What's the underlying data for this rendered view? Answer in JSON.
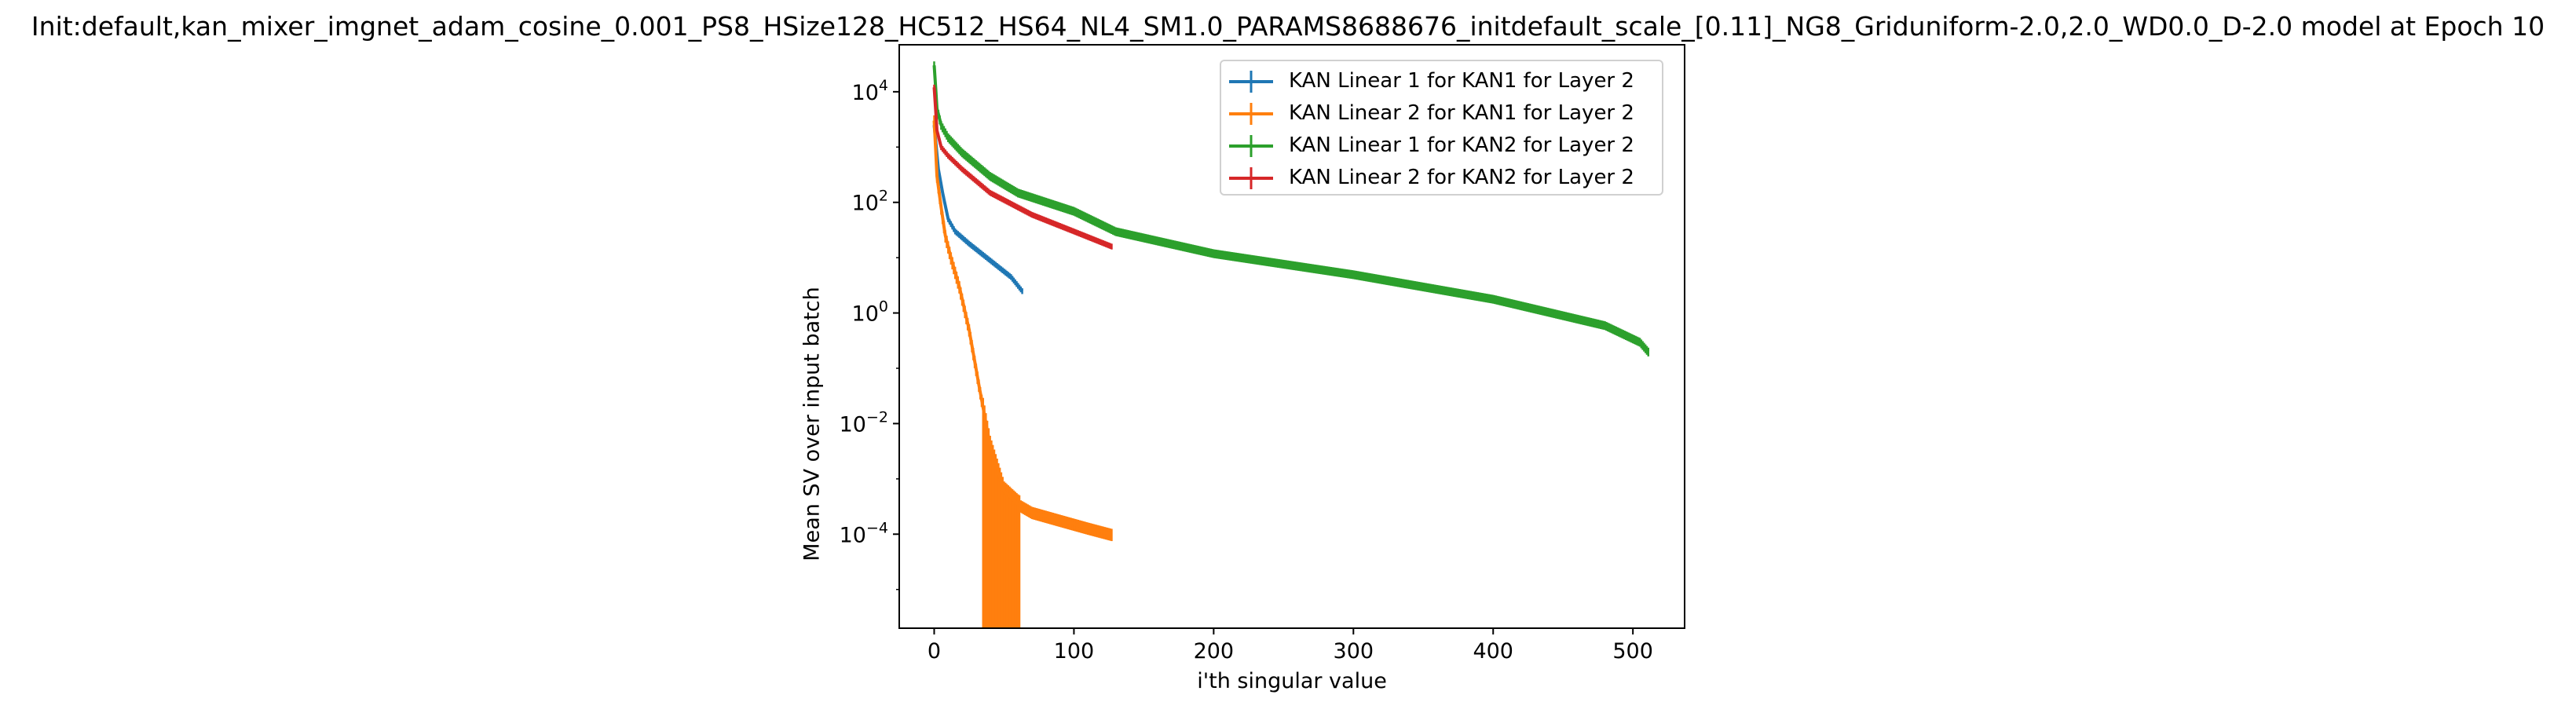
{
  "chart_data": {
    "type": "line",
    "title": "Init:default,kan_mixer_imgnet_adam_cosine_0.001_PS8_HSize128_HC512_HS64_NL4_SM1.0_PARAMS8688676_initdefault_scale_[0.11]_NG8_Griduniform-2.0,2.0_WD0.0_D-2.0 model at Epoch 10",
    "xlabel": "i'th singular value",
    "ylabel": "Mean SV over input batch",
    "yscale": "log",
    "xlim": [
      -25,
      537
    ],
    "ylim_log10": [
      -5.7,
      4.85
    ],
    "xticks": [
      0,
      100,
      200,
      300,
      400,
      500
    ],
    "xtick_labels": [
      "0",
      "100",
      "200",
      "300",
      "400",
      "500"
    ],
    "yticks_log10": [
      4,
      2,
      0,
      -2,
      -4
    ],
    "ytick_labels": [
      {
        "base": "10",
        "exp": "4"
      },
      {
        "base": "10",
        "exp": "2"
      },
      {
        "base": "10",
        "exp": "0"
      },
      {
        "base": "10",
        "exp": "−2"
      },
      {
        "base": "10",
        "exp": "−4"
      }
    ],
    "legend_position": "upper right",
    "grid": false,
    "series": [
      {
        "name": "KAN Linear 1 for KAN1 for Layer 2",
        "color": "#1f77b4",
        "n": 64,
        "points": [
          [
            0,
            2500
          ],
          [
            3,
            400
          ],
          [
            6,
            150
          ],
          [
            10,
            50
          ],
          [
            15,
            30
          ],
          [
            25,
            18
          ],
          [
            40,
            9
          ],
          [
            55,
            4.5
          ],
          [
            63,
            2.5
          ]
        ],
        "err_rel": 0.12
      },
      {
        "name": "KAN Linear 2 for KAN1 for Layer 2",
        "color": "#ff7f0e",
        "n": 128,
        "points": [
          [
            0,
            3000
          ],
          [
            2,
            300
          ],
          [
            5,
            80
          ],
          [
            8,
            25
          ],
          [
            12,
            10
          ],
          [
            18,
            3
          ],
          [
            25,
            0.5
          ],
          [
            32,
            0.05
          ],
          [
            40,
            0.004
          ],
          [
            50,
            0.0006
          ],
          [
            60,
            0.00035
          ],
          [
            70,
            0.00025
          ],
          [
            90,
            0.00018
          ],
          [
            110,
            0.00013
          ],
          [
            127,
            0.0001
          ]
        ],
        "err_region": [
          35,
          61
        ],
        "err_rel": 0.25
      },
      {
        "name": "KAN Linear 1 for KAN2 for Layer 2",
        "color": "#2ca02c",
        "n": 512,
        "points": [
          [
            0,
            30000
          ],
          [
            2,
            5000
          ],
          [
            5,
            2500
          ],
          [
            10,
            1500
          ],
          [
            20,
            800
          ],
          [
            40,
            300
          ],
          [
            60,
            150
          ],
          [
            100,
            70
          ],
          [
            130,
            30
          ],
          [
            200,
            12
          ],
          [
            300,
            5
          ],
          [
            400,
            1.8
          ],
          [
            480,
            0.6
          ],
          [
            505,
            0.3
          ],
          [
            511,
            0.2
          ]
        ],
        "err_rel": 0.18
      },
      {
        "name": "KAN Linear 2 for KAN2 for Layer 2",
        "color": "#d62728",
        "n": 128,
        "points": [
          [
            0,
            12000
          ],
          [
            2,
            2000
          ],
          [
            5,
            1000
          ],
          [
            10,
            700
          ],
          [
            20,
            400
          ],
          [
            40,
            150
          ],
          [
            70,
            60
          ],
          [
            100,
            30
          ],
          [
            127,
            16
          ]
        ],
        "err_rel": 0.12
      }
    ]
  }
}
